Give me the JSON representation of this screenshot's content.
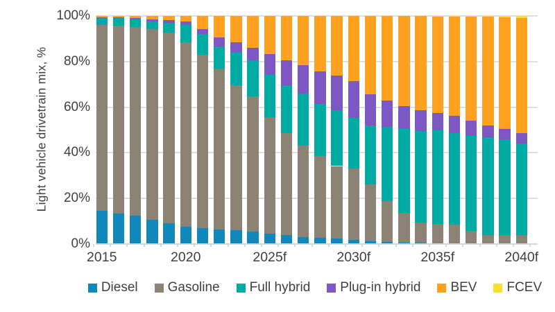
{
  "colors": {
    "background": "#ffffff",
    "gridline": "#dedede",
    "axis_line": "#d6d6d6",
    "text": "#3f3f3f"
  },
  "chart_data": {
    "type": "bar",
    "stacked": true,
    "title": "",
    "xlabel": "",
    "ylabel": "Light vehicle drivetrain mix, %",
    "ylim": [
      0,
      100
    ],
    "grid": true,
    "legend_position": "bottom",
    "y_ticks": [
      {
        "value": 0,
        "label": "0%"
      },
      {
        "value": 20,
        "label": "20%"
      },
      {
        "value": 40,
        "label": "40%"
      },
      {
        "value": 60,
        "label": "60%"
      },
      {
        "value": 80,
        "label": "80%"
      },
      {
        "value": 100,
        "label": "100%"
      }
    ],
    "x_tick_labels": [
      {
        "index": 0,
        "label": "2015"
      },
      {
        "index": 5,
        "label": "2020"
      },
      {
        "index": 10,
        "label": "2025f"
      },
      {
        "index": 15,
        "label": "2030f"
      },
      {
        "index": 20,
        "label": "2035f"
      },
      {
        "index": 25,
        "label": "2040f"
      }
    ],
    "categories": [
      2015,
      2016,
      2017,
      2018,
      2019,
      2020,
      2021,
      2022,
      2023,
      2024,
      2025,
      2026,
      2027,
      2028,
      2029,
      2030,
      2031,
      2032,
      2033,
      2034,
      2035,
      2036,
      2037,
      2038,
      2039,
      2040
    ],
    "series": [
      {
        "name": "Diesel",
        "color": "#1088bc",
        "values": [
          14.5,
          13.5,
          12.5,
          10.5,
          9,
          7.5,
          7,
          6.5,
          6,
          5.5,
          4.5,
          4,
          3,
          2.7,
          2.5,
          1.7,
          1.3,
          1,
          0.7,
          0.5,
          0.3,
          0.2,
          0.1,
          0.1,
          0.1,
          0
        ]
      },
      {
        "name": "Gasoline",
        "color": "#8c8375",
        "values": [
          81.7,
          82.4,
          82.6,
          83.7,
          83.7,
          81.1,
          75.9,
          70.4,
          63.7,
          59.2,
          51,
          44.7,
          40.1,
          35.9,
          31.7,
          31.3,
          24.8,
          18,
          13,
          8.8,
          8.5,
          8.4,
          5.6,
          4,
          4,
          4.1
        ]
      },
      {
        "name": "Full hybrid",
        "color": "#00aba4",
        "values": [
          3,
          3.1,
          3.5,
          3.5,
          4.4,
          7.5,
          9.2,
          9.7,
          14.3,
          15.8,
          18.6,
          20.8,
          22.9,
          22.8,
          24.4,
          22.3,
          26,
          32.3,
          36.8,
          40.2,
          41,
          40.1,
          41.7,
          42.6,
          41.9,
          39.9
        ]
      },
      {
        "name": "Plug-in hybrid",
        "color": "#7d57c4",
        "values": [
          0.2,
          0.3,
          0.5,
          0.9,
          1.1,
          1.4,
          2.2,
          4,
          4.6,
          5.5,
          9.3,
          11,
          12.5,
          14.4,
          15.2,
          16.1,
          13.6,
          11.6,
          10.1,
          9.1,
          7.8,
          7.4,
          6.7,
          5.4,
          4.5,
          4.7
        ]
      },
      {
        "name": "BEV",
        "color": "#ffa01e",
        "values": [
          0.6,
          0.7,
          0.9,
          1.4,
          1.8,
          2.5,
          5.7,
          9.4,
          11.4,
          14,
          16.6,
          19.5,
          21.5,
          24.2,
          26.2,
          28.6,
          34.3,
          37.1,
          39.4,
          41.4,
          42.3,
          43.7,
          45.6,
          47.5,
          48.9,
          50.5
        ]
      },
      {
        "name": "FCEV",
        "color": "#fbe12e",
        "values": [
          0,
          0,
          0,
          0,
          0,
          0,
          0,
          0,
          0,
          0,
          0,
          0,
          0,
          0,
          0,
          0,
          0,
          0,
          0,
          0,
          0.1,
          0.2,
          0.3,
          0.4,
          0.6,
          0.8
        ]
      }
    ]
  }
}
